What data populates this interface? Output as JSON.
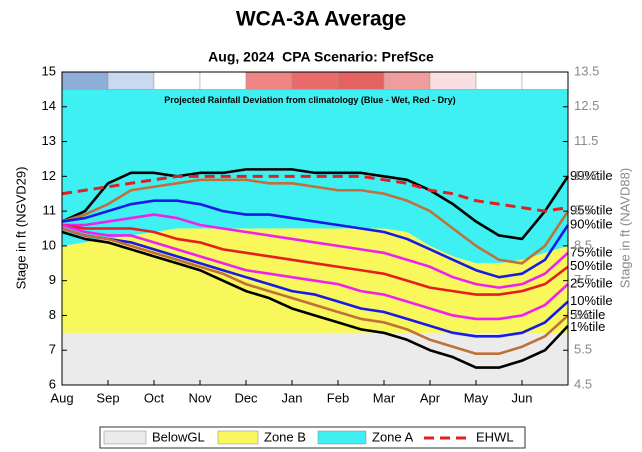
{
  "chart_data": {
    "type": "line",
    "title": "WCA-3A Average",
    "subtitle": "Aug, 2024  CPA Scenario: PrefSce",
    "y_label": "Stage in ft (NGVD29)",
    "y2_label": "Stage in ft (NAVD88)",
    "xlim": [
      0,
      11
    ],
    "xticks": [
      {
        "value": 0,
        "label": "Aug"
      },
      {
        "value": 1,
        "label": "Sep"
      },
      {
        "value": 2,
        "label": "Oct"
      },
      {
        "value": 3,
        "label": "Nov"
      },
      {
        "value": 4,
        "label": "Dec"
      },
      {
        "value": 5,
        "label": "Jan"
      },
      {
        "value": 6,
        "label": "Feb"
      },
      {
        "value": 7,
        "label": "Mar"
      },
      {
        "value": 8,
        "label": "Apr"
      },
      {
        "value": 9,
        "label": "May"
      },
      {
        "value": 10,
        "label": "Jun"
      }
    ],
    "ylim": [
      6,
      15
    ],
    "yticks": [
      6,
      7,
      8,
      9,
      10,
      11,
      12,
      13,
      14,
      15
    ],
    "y2lim": [
      4.5,
      13.5
    ],
    "y2ticks": [
      4.5,
      5.5,
      6.5,
      7.5,
      8.5,
      9.5,
      10.5,
      11.5,
      12.5,
      13.5
    ],
    "rainfall_band": {
      "label": "Projected Rainfall Deviation from climatology (Blue - Wet, Red - Dry)",
      "colors": [
        "#8eaed8",
        "#c9d9ef",
        "#ffffff",
        "#ffffff",
        "#f08585",
        "#e96b6b",
        "#e46262",
        "#f19c9c",
        "#f9dfe2",
        "#ffffff",
        "#ffffff"
      ]
    },
    "x": [
      0,
      0.5,
      1,
      1.5,
      2,
      2.5,
      3,
      3.5,
      4,
      4.5,
      5,
      5.5,
      6,
      6.5,
      7,
      7.5,
      8,
      8.5,
      9,
      9.5,
      10,
      10.5,
      11
    ],
    "zones": [
      {
        "name": "BelowGL",
        "color": "#ebebeb",
        "upper": 7.5
      },
      {
        "name": "Zone B",
        "color": "#f8f85c",
        "upper": [
          10.0,
          10.1,
          10.2,
          10.3,
          10.4,
          10.5,
          10.5,
          10.5,
          10.5,
          10.5,
          10.5,
          10.5,
          10.5,
          10.5,
          10.5,
          10.4,
          10.0,
          9.7,
          9.5,
          9.5,
          9.6,
          9.8,
          10.0
        ]
      },
      {
        "name": "Zone A",
        "color": "#3ff0f2",
        "upper": 14.5
      }
    ],
    "series": [
      {
        "name": "99%tile",
        "color": "#000000",
        "values": [
          10.7,
          11.0,
          11.8,
          12.1,
          12.1,
          12.0,
          12.1,
          12.1,
          12.2,
          12.2,
          12.2,
          12.1,
          12.1,
          12.1,
          12.0,
          11.9,
          11.6,
          11.2,
          10.7,
          10.3,
          10.2,
          11.0,
          12.0
        ]
      },
      {
        "name": "95%tile",
        "color": "#c0703a",
        "values": [
          10.7,
          10.9,
          11.2,
          11.6,
          11.7,
          11.8,
          11.9,
          11.9,
          11.9,
          11.8,
          11.8,
          11.7,
          11.6,
          11.6,
          11.5,
          11.3,
          11.0,
          10.5,
          10.0,
          9.6,
          9.5,
          10.0,
          11.0
        ]
      },
      {
        "name": "90%tile",
        "color": "#1a1ae6",
        "values": [
          10.7,
          10.8,
          11.0,
          11.2,
          11.3,
          11.3,
          11.2,
          11.0,
          10.9,
          10.9,
          10.8,
          10.7,
          10.6,
          10.5,
          10.4,
          10.2,
          9.9,
          9.6,
          9.3,
          9.1,
          9.2,
          9.6,
          10.6
        ]
      },
      {
        "name": "75%tile",
        "color": "#ee22ee",
        "values": [
          10.6,
          10.6,
          10.7,
          10.8,
          10.9,
          10.8,
          10.6,
          10.5,
          10.4,
          10.3,
          10.2,
          10.1,
          10.0,
          9.9,
          9.8,
          9.6,
          9.4,
          9.1,
          8.9,
          8.8,
          8.9,
          9.2,
          9.8
        ]
      },
      {
        "name": "50%tile",
        "color": "#e61e1e",
        "values": [
          10.6,
          10.5,
          10.5,
          10.5,
          10.4,
          10.2,
          10.1,
          9.9,
          9.8,
          9.7,
          9.6,
          9.5,
          9.4,
          9.3,
          9.2,
          9.0,
          8.8,
          8.7,
          8.6,
          8.6,
          8.7,
          8.9,
          9.4
        ]
      },
      {
        "name": "25%tile",
        "color": "#ee22ee",
        "values": [
          10.6,
          10.4,
          10.3,
          10.3,
          10.1,
          9.9,
          9.7,
          9.5,
          9.3,
          9.2,
          9.1,
          9.0,
          8.9,
          8.7,
          8.6,
          8.4,
          8.2,
          8.0,
          7.9,
          7.9,
          8.0,
          8.3,
          8.9
        ]
      },
      {
        "name": "10%tile",
        "color": "#1a1ae6",
        "values": [
          10.5,
          10.3,
          10.2,
          10.1,
          9.9,
          9.7,
          9.5,
          9.3,
          9.1,
          8.9,
          8.7,
          8.6,
          8.4,
          8.2,
          8.1,
          7.9,
          7.7,
          7.5,
          7.4,
          7.4,
          7.5,
          7.8,
          8.4
        ]
      },
      {
        "name": "5%tile",
        "color": "#c0703a",
        "values": [
          10.5,
          10.3,
          10.2,
          10.0,
          9.8,
          9.6,
          9.4,
          9.2,
          8.9,
          8.7,
          8.5,
          8.3,
          8.1,
          7.9,
          7.8,
          7.6,
          7.3,
          7.1,
          6.9,
          6.9,
          7.1,
          7.4,
          8.0
        ]
      },
      {
        "name": "1%tile",
        "color": "#000000",
        "values": [
          10.4,
          10.2,
          10.1,
          9.9,
          9.7,
          9.5,
          9.3,
          9.0,
          8.7,
          8.5,
          8.2,
          8.0,
          7.8,
          7.6,
          7.5,
          7.3,
          7.0,
          6.8,
          6.5,
          6.5,
          6.7,
          7.0,
          7.7
        ]
      },
      {
        "name": "EHWL",
        "color": "#e02020",
        "dash": true,
        "values": [
          11.5,
          11.6,
          11.7,
          11.8,
          11.9,
          12.0,
          12.0,
          12.0,
          12.0,
          12.0,
          12.0,
          12.0,
          12.0,
          12.0,
          11.9,
          11.8,
          11.6,
          11.5,
          11.3,
          11.2,
          11.1,
          11.0,
          11.1
        ]
      }
    ]
  }
}
